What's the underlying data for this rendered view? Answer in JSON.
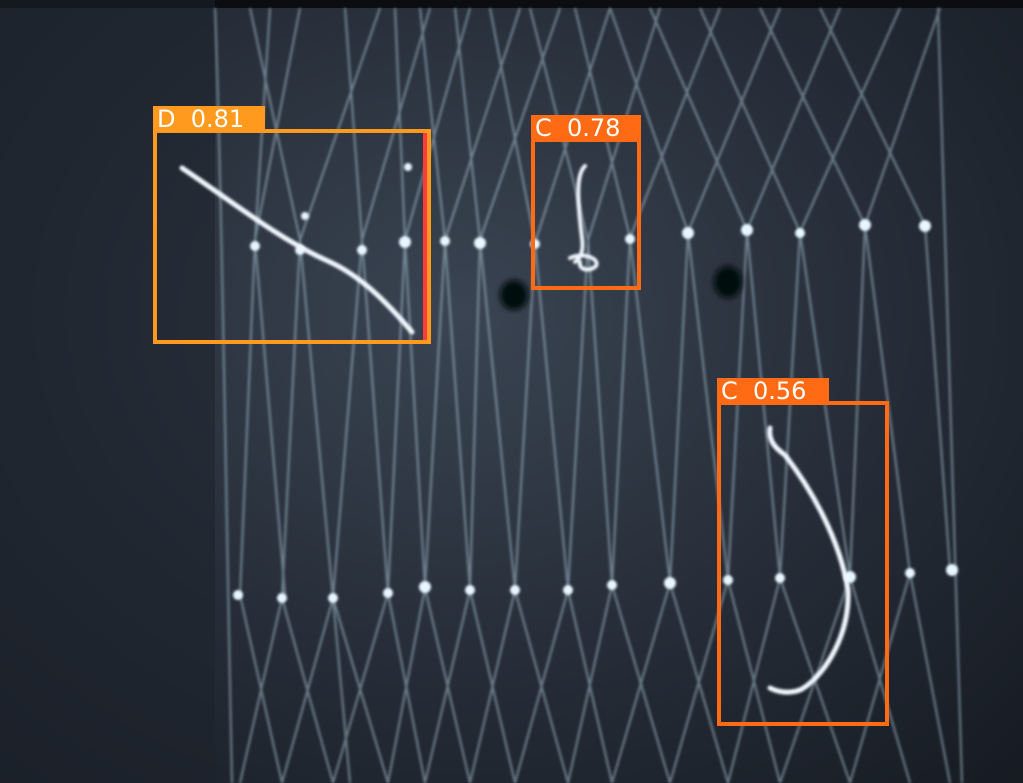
{
  "image": {
    "subject": "close-up of a knitted mesh net with thin strands and knots against a dark background"
  },
  "detections": [
    {
      "class": "D",
      "score": "0.81",
      "text": "D  0.81",
      "color": "#ff9a1e"
    },
    {
      "class": "C",
      "score": "0.78",
      "text": "C  0.78",
      "color": "#ff6a14"
    },
    {
      "class": "C",
      "score": "0.56",
      "text": "C  0.56",
      "color": "#ff6a14"
    }
  ]
}
